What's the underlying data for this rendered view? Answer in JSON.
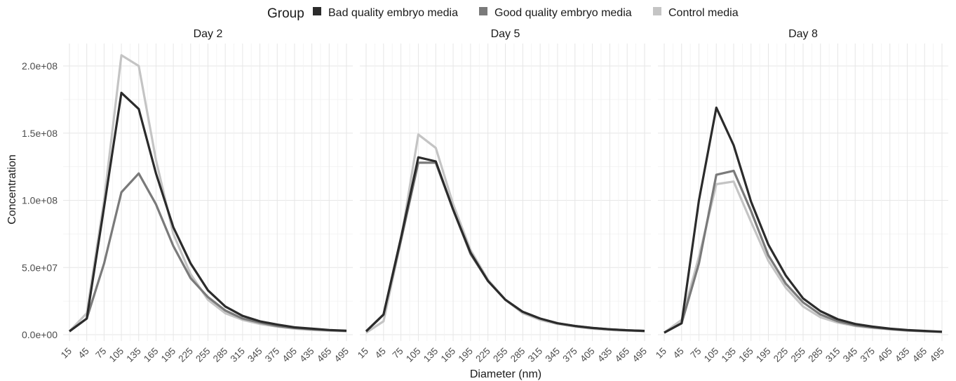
{
  "chart_data": {
    "type": "line",
    "legend": {
      "title": "Group",
      "position": "top",
      "entries": [
        {
          "name": "Bad quality embryo media",
          "color": "#2b2b2b"
        },
        {
          "name": "Good quality embryo media",
          "color": "#7a7a7a"
        },
        {
          "name": "Control media",
          "color": "#c4c4c4"
        }
      ]
    },
    "xlabel": "Diameter (nm)",
    "ylabel": "Concentration",
    "x": [
      15,
      45,
      75,
      105,
      135,
      165,
      195,
      225,
      255,
      285,
      315,
      345,
      375,
      405,
      435,
      465,
      495
    ],
    "x_tick_labels": [
      "15",
      "45",
      "75",
      "105",
      "135",
      "165",
      "195",
      "225",
      "255",
      "285",
      "315",
      "345",
      "375",
      "405",
      "435",
      "465",
      "495"
    ],
    "ylim": [
      0,
      215000000
    ],
    "y_ticks": [
      0,
      50000000,
      100000000,
      150000000,
      200000000
    ],
    "y_tick_labels": [
      "0.0e+00",
      "5.0e+07",
      "1.0e+08",
      "1.5e+08",
      "2.0e+08"
    ],
    "grid": true,
    "panels": [
      {
        "title": "Day 2",
        "series": [
          {
            "name": "Control media",
            "values": [
              2500000,
              16000000,
              100000000,
              208000000,
              200000000,
              130000000,
              75000000,
              45000000,
              26000000,
              16000000,
              11000000,
              8000000,
              6000000,
              4500000,
              3500000,
              3000000,
              2500000
            ]
          },
          {
            "name": "Good quality embryo media",
            "values": [
              2500000,
              12000000,
              53000000,
              106000000,
              120000000,
              97000000,
              66000000,
              42000000,
              28000000,
              18000000,
              12000000,
              9000000,
              6500000,
              5000000,
              4000000,
              3300000,
              2800000
            ]
          },
          {
            "name": "Bad quality embryo media",
            "values": [
              2500000,
              12000000,
              95000000,
              180000000,
              168000000,
              120000000,
              80000000,
              53000000,
              33000000,
              21000000,
              14000000,
              10000000,
              7500000,
              5500000,
              4500000,
              3500000,
              3000000
            ]
          }
        ]
      },
      {
        "title": "Day 5",
        "series": [
          {
            "name": "Control media",
            "values": [
              1500000,
              10000000,
              70000000,
              149000000,
              139000000,
              97000000,
              63000000,
              41000000,
              26000000,
              16000000,
              11000000,
              8000000,
              6000000,
              4500000,
              3500000,
              3000000,
              2500000
            ]
          },
          {
            "name": "Good quality embryo media",
            "values": [
              2500000,
              15000000,
              70000000,
              128000000,
              128000000,
              93000000,
              60000000,
              40000000,
              26000000,
              17000000,
              12000000,
              8500000,
              6500000,
              5000000,
              4000000,
              3300000,
              2800000
            ]
          },
          {
            "name": "Bad quality embryo media",
            "values": [
              2500000,
              15000000,
              72000000,
              132000000,
              129000000,
              93000000,
              61000000,
              40000000,
              26000000,
              17000000,
              12000000,
              8500000,
              6500000,
              5000000,
              4000000,
              3300000,
              2800000
            ]
          }
        ]
      },
      {
        "title": "Day 8",
        "series": [
          {
            "name": "Control media",
            "values": [
              1500000,
              11000000,
              58000000,
              112000000,
              114000000,
              84000000,
              55000000,
              35000000,
              21000000,
              13000000,
              9000000,
              6500000,
              5000000,
              4000000,
              3000000,
              2500000,
              2000000
            ]
          },
          {
            "name": "Good quality embryo media",
            "values": [
              1500000,
              8500000,
              53000000,
              119000000,
              122000000,
              92000000,
              59000000,
              38000000,
              24000000,
              15000000,
              10000000,
              7000000,
              5500000,
              4200000,
              3200000,
              2600000,
              2100000
            ]
          },
          {
            "name": "Bad quality embryo media",
            "values": [
              1500000,
              8500000,
              100000000,
              169000000,
              141000000,
              99000000,
              67000000,
              44000000,
              27000000,
              17500000,
              11500000,
              8000000,
              6000000,
              4500000,
              3500000,
              2800000,
              2200000
            ]
          }
        ]
      }
    ]
  }
}
